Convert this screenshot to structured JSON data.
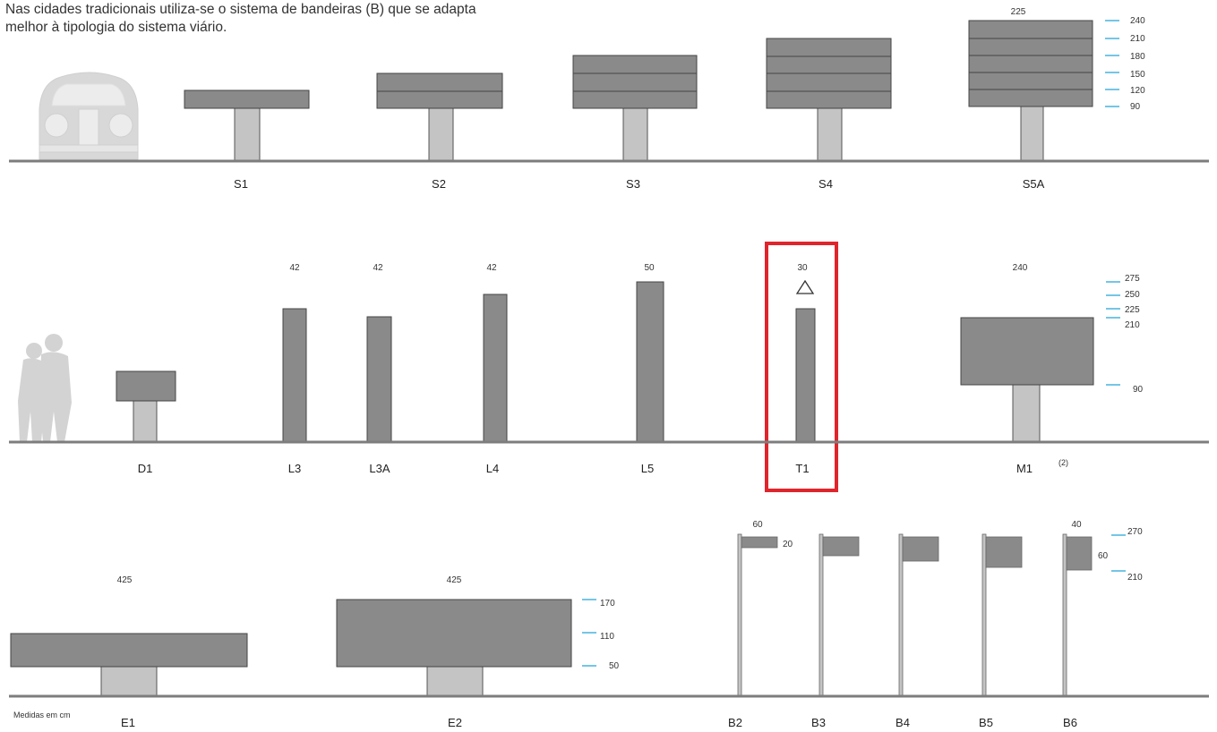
{
  "intro": {
    "line1": "Nas cidades tradicionais utiliza-se o sistema de bandeiras (B) que se adapta",
    "line2": "melhor à tipologia do sistema viário."
  },
  "colors": {
    "sign_dark": "#8a8a8a",
    "post_light": "#c4c4c4",
    "ground": "#7d7d7d",
    "scale_blue": "#2aa8d8",
    "highlight_red": "#e0242c",
    "silhouette": "#d6d6d6"
  },
  "row1": {
    "labels": {
      "s1": "S1",
      "s2": "S2",
      "s3": "S3",
      "s4": "S4",
      "s5a": "S5A"
    },
    "s5a_width": "225",
    "scale_ticks": [
      "240",
      "210",
      "180",
      "150",
      "120",
      "90"
    ]
  },
  "row2": {
    "labels": {
      "d1": "D1",
      "l3": "L3",
      "l3a": "L3A",
      "l4": "L4",
      "l5": "L5",
      "t1": "T1",
      "m1": "M1"
    },
    "widths": {
      "l3": "42",
      "l3a": "42",
      "l4": "42",
      "l5": "50",
      "t1": "30",
      "m1": "240"
    },
    "m1_note": "(2)",
    "scale_ticks": [
      "275",
      "250",
      "225",
      "210",
      "90"
    ],
    "t1_icon": "triangle-outline-icon",
    "t1_highlighted": true
  },
  "row3": {
    "labels": {
      "e1": "E1",
      "e2": "E2",
      "b2": "B2",
      "b3": "B3",
      "b4": "B4",
      "b5": "B5",
      "b6": "B6"
    },
    "widths": {
      "e1": "425",
      "e2": "425",
      "b2": "60",
      "b6": "40"
    },
    "b2_height": "20",
    "b6_height": "60",
    "e2_scale_ticks": [
      "170",
      "110",
      "50"
    ],
    "b6_scale_ticks": [
      "270",
      "210"
    ],
    "units_note": "Medidas em cm"
  }
}
